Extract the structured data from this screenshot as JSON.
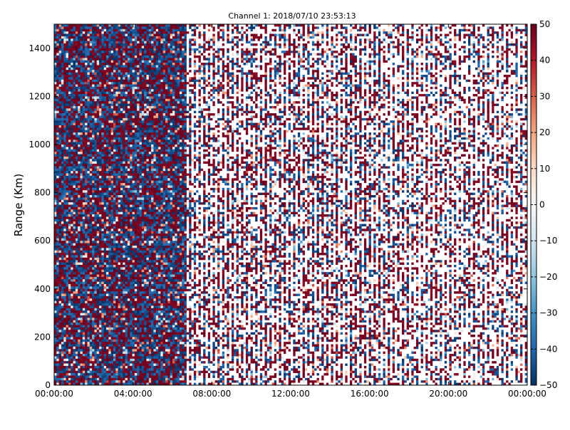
{
  "chart_data": {
    "type": "heatmap",
    "title": "Channel 1: 2018/07/10 23:53:13",
    "xlabel": "",
    "ylabel": "Range (Km)",
    "x_tick_labels": [
      "00:00:00",
      "04:00:00",
      "08:00:00",
      "12:00:00",
      "16:00:00",
      "20:00:00",
      "00:00:00"
    ],
    "x_tick_hours": [
      0,
      4,
      8,
      12,
      16,
      20,
      24
    ],
    "xlim_hours": [
      0,
      24
    ],
    "y_ticks": [
      0,
      200,
      400,
      600,
      800,
      1000,
      1200,
      1400
    ],
    "ylim": [
      0,
      1500
    ],
    "colorbar": {
      "colormap": "RdBu_r",
      "vmin": -50,
      "vmax": 50,
      "ticks": [
        50,
        40,
        30,
        20,
        10,
        0,
        -10,
        -20,
        -30,
        -40,
        -50
      ],
      "stops": [
        "#053061",
        "#2166ac",
        "#4393c3",
        "#92c5de",
        "#d1e5f0",
        "#f7f7f7",
        "#fddbc7",
        "#f4a582",
        "#d6604d",
        "#b2182b",
        "#67001f"
      ]
    },
    "grid": false
  }
}
